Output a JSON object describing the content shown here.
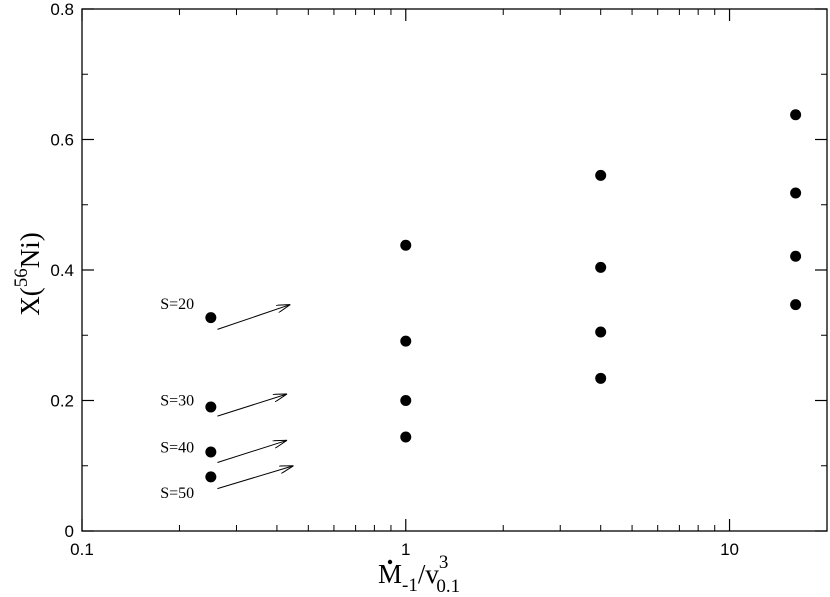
{
  "chart_data": {
    "type": "scatter",
    "x_scale": "log",
    "xlim": [
      0.1,
      20
    ],
    "ylim": [
      0,
      0.8
    ],
    "x_ticks": [
      {
        "value": 0.1,
        "label": "0.1"
      },
      {
        "value": 1,
        "label": "1"
      },
      {
        "value": 10,
        "label": "10"
      }
    ],
    "y_ticks": [
      {
        "value": 0,
        "label": "0"
      },
      {
        "value": 0.2,
        "label": "0.2"
      },
      {
        "value": 0.4,
        "label": "0.4"
      },
      {
        "value": 0.6,
        "label": "0.6"
      },
      {
        "value": 0.8,
        "label": "0.8"
      }
    ],
    "xlabel": {
      "main": "M",
      "sub1": "-1",
      "slash": "/v",
      "sup": "3",
      "sub2": "0.1"
    },
    "ylabel": {
      "prefix": "X(",
      "sup": "56",
      "suffix": "Ni)"
    },
    "points": [
      {
        "x": 0.25,
        "y": 0.327
      },
      {
        "x": 0.25,
        "y": 0.19
      },
      {
        "x": 0.25,
        "y": 0.121
      },
      {
        "x": 0.25,
        "y": 0.083
      },
      {
        "x": 1,
        "y": 0.438
      },
      {
        "x": 1,
        "y": 0.291
      },
      {
        "x": 1,
        "y": 0.2
      },
      {
        "x": 1,
        "y": 0.144
      },
      {
        "x": 4,
        "y": 0.545
      },
      {
        "x": 4,
        "y": 0.404
      },
      {
        "x": 4,
        "y": 0.305
      },
      {
        "x": 4,
        "y": 0.234
      },
      {
        "x": 16,
        "y": 0.638
      },
      {
        "x": 16,
        "y": 0.518
      },
      {
        "x": 16,
        "y": 0.421
      },
      {
        "x": 16,
        "y": 0.347
      }
    ],
    "annotations": [
      {
        "label": "S=20",
        "label_x": 0.222,
        "label_y": 0.348,
        "arrow_from": [
          0.262,
          0.309
        ],
        "arrow_to": [
          0.44,
          0.347
        ]
      },
      {
        "label": "S=30",
        "label_x": 0.222,
        "label_y": 0.2,
        "arrow_from": [
          0.262,
          0.176
        ],
        "arrow_to": [
          0.43,
          0.21
        ]
      },
      {
        "label": "S=40",
        "label_x": 0.222,
        "label_y": 0.128,
        "arrow_from": [
          0.262,
          0.105
        ],
        "arrow_to": [
          0.43,
          0.139
        ]
      },
      {
        "label": "S=50",
        "label_x": 0.222,
        "label_y": 0.058,
        "arrow_from": [
          0.262,
          0.065
        ],
        "arrow_to": [
          0.45,
          0.1
        ]
      }
    ],
    "grid": false,
    "marker_color": "#000000"
  }
}
